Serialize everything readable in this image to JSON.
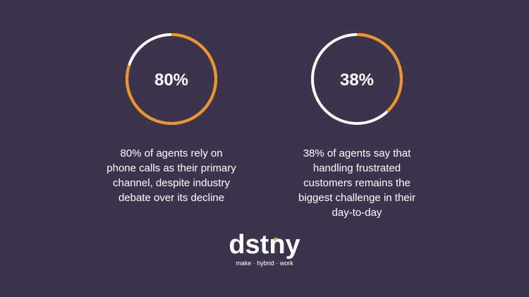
{
  "chart_data": [
    {
      "type": "donut",
      "values": [
        80
      ],
      "value_labels": [
        "80%"
      ],
      "color": "#f39324",
      "caption": "80% of agents rely on phone calls as their primary channel, despite industry debate over its decline"
    },
    {
      "type": "donut",
      "values": [
        38
      ],
      "value_labels": [
        "38%"
      ],
      "color": "#f39324",
      "caption": "38% of agents say that handling frustrated customers remains the biggest challenge in their day-to-day"
    }
  ],
  "logo": {
    "text": "dstny",
    "tagline": "make · hybrid · work"
  }
}
